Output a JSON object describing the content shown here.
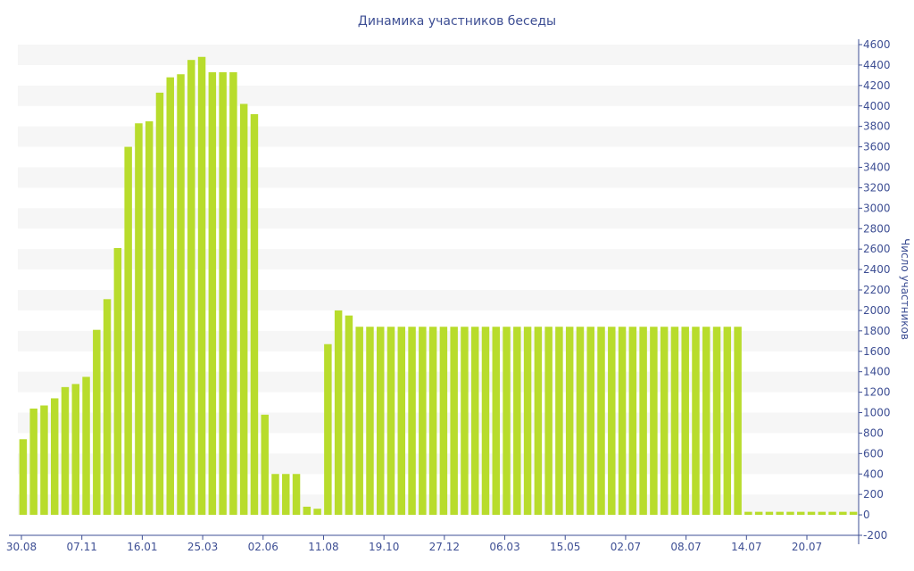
{
  "chart_data": {
    "type": "bar",
    "title": "Динамика участников беседы",
    "xlabel": "",
    "ylabel": "Число участников",
    "ylim": [
      -200,
      4600
    ],
    "y_ticks": [
      -200,
      0,
      200,
      400,
      600,
      800,
      1000,
      1200,
      1400,
      1600,
      1800,
      2000,
      2200,
      2400,
      2600,
      2800,
      3000,
      3200,
      3400,
      3600,
      3800,
      4000,
      4200,
      4400,
      4600
    ],
    "y_axis_position": "right",
    "x_tick_labels": [
      "30.08",
      "07.11",
      "16.01",
      "25.03",
      "02.06",
      "11.08",
      "19.10",
      "27.12",
      "06.03",
      "15.05",
      "02.07",
      "08.07",
      "14.07",
      "20.07"
    ],
    "grid": "horizontal bands",
    "bar_color": "#b8dc2c",
    "band_color": "#f6f6f6",
    "text_color": "#3e4f94",
    "values": [
      740,
      1040,
      1070,
      1140,
      1250,
      1280,
      1350,
      1810,
      2110,
      2610,
      3600,
      3830,
      3850,
      4130,
      4280,
      4310,
      4450,
      4480,
      4330,
      4330,
      4330,
      4020,
      3920,
      980,
      400,
      400,
      400,
      80,
      60,
      1670,
      2000,
      1950,
      1840,
      1840,
      1840,
      1840,
      1840,
      1840,
      1840,
      1840,
      1840,
      1840,
      1840,
      1840,
      1840,
      1840,
      1840,
      1840,
      1840,
      1840,
      1840,
      1840,
      1840,
      1840,
      1840,
      1840,
      1840,
      1840,
      1840,
      1840,
      1840,
      1840,
      1840,
      1840,
      1840,
      1840,
      1840,
      1840,
      1840,
      30,
      30,
      30,
      30,
      30,
      30,
      30,
      30,
      30,
      30,
      30
    ]
  }
}
